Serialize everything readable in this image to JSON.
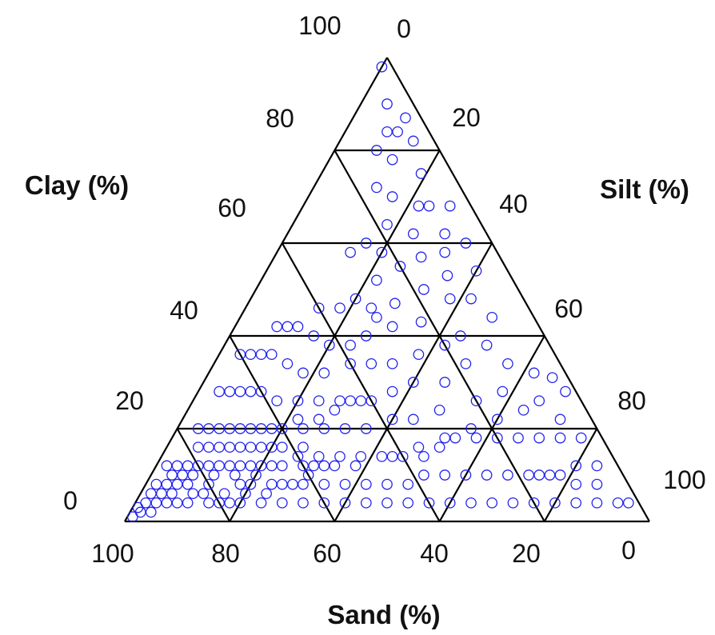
{
  "chart_data": {
    "type": "scatter",
    "subtype": "ternary",
    "title": "",
    "axes": {
      "clay": {
        "label": "Clay (%)",
        "ticks": [
          "100",
          "80",
          "60",
          "40",
          "20",
          "0"
        ],
        "range": [
          0,
          100
        ]
      },
      "silt": {
        "label": "Silt (%)",
        "ticks": [
          "0",
          "20",
          "40",
          "60",
          "80",
          "100"
        ],
        "range": [
          0,
          100
        ]
      },
      "sand": {
        "label": "Sand (%)",
        "ticks": [
          "100",
          "80",
          "60",
          "40",
          "20",
          "0"
        ],
        "range": [
          0,
          100
        ]
      }
    },
    "grid": true,
    "grid_step": 20,
    "marker": "open-circle",
    "marker_color": "#2222ee",
    "line_color": "#000000",
    "series": [
      {
        "columns": [
          "sand",
          "silt",
          "clay"
        ],
        "points": [
          [
            2,
            0,
            98
          ],
          [
            5,
            5,
            90
          ],
          [
            3,
            10,
            87
          ],
          [
            4,
            14,
            82
          ],
          [
            8,
            8,
            84
          ],
          [
            6,
            19,
            75
          ],
          [
            8,
            24,
            68
          ],
          [
            4,
            28,
            68
          ],
          [
            10,
            22,
            68
          ],
          [
            14,
            24,
            62
          ],
          [
            8,
            30,
            62
          ],
          [
            5,
            35,
            60
          ],
          [
            10,
            32,
            58
          ],
          [
            15,
            28,
            57
          ],
          [
            20,
            25,
            55
          ],
          [
            12,
            35,
            53
          ],
          [
            6,
            40,
            54
          ],
          [
            18,
            32,
            50
          ],
          [
            25,
            28,
            47
          ],
          [
            10,
            42,
            48
          ],
          [
            14,
            38,
            48
          ],
          [
            22,
            35,
            43
          ],
          [
            28,
            30,
            42
          ],
          [
            30,
            26,
            44
          ],
          [
            16,
            44,
            40
          ],
          [
            8,
            48,
            44
          ],
          [
            12,
            50,
            38
          ],
          [
            20,
            42,
            38
          ],
          [
            26,
            38,
            36
          ],
          [
            32,
            34,
            34
          ],
          [
            36,
            30,
            34
          ],
          [
            40,
            26,
            34
          ],
          [
            18,
            48,
            34
          ],
          [
            24,
            46,
            30
          ],
          [
            30,
            40,
            30
          ],
          [
            35,
            37,
            28
          ],
          [
            42,
            32,
            26
          ],
          [
            46,
            28,
            26
          ],
          [
            50,
            24,
            26
          ],
          [
            10,
            56,
            34
          ],
          [
            14,
            58,
            28
          ],
          [
            20,
            54,
            26
          ],
          [
            28,
            48,
            24
          ],
          [
            34,
            44,
            22
          ],
          [
            38,
            40,
            22
          ],
          [
            44,
            36,
            20
          ],
          [
            48,
            32,
            20
          ],
          [
            52,
            28,
            20
          ],
          [
            56,
            24,
            20
          ],
          [
            6,
            62,
            32
          ],
          [
            8,
            66,
            26
          ],
          [
            12,
            64,
            24
          ],
          [
            18,
            60,
            22
          ],
          [
            24,
            56,
            20
          ],
          [
            30,
            52,
            18
          ],
          [
            36,
            48,
            16
          ],
          [
            42,
            44,
            14
          ],
          [
            50,
            38,
            12
          ],
          [
            54,
            34,
            12
          ],
          [
            58,
            30,
            12
          ],
          [
            60,
            26,
            14
          ],
          [
            62,
            22,
            16
          ],
          [
            64,
            20,
            16
          ],
          [
            66,
            18,
            16
          ],
          [
            68,
            16,
            16
          ],
          [
            70,
            14,
            16
          ],
          [
            72,
            12,
            16
          ],
          [
            74,
            10,
            16
          ],
          [
            76,
            8,
            16
          ],
          [
            78,
            6,
            16
          ],
          [
            66,
            22,
            12
          ],
          [
            70,
            20,
            10
          ],
          [
            74,
            16,
            10
          ],
          [
            78,
            12,
            10
          ],
          [
            82,
            8,
            10
          ],
          [
            84,
            6,
            10
          ],
          [
            86,
            4,
            10
          ],
          [
            88,
            4,
            8
          ],
          [
            90,
            2,
            8
          ],
          [
            92,
            2,
            6
          ],
          [
            94,
            2,
            4
          ],
          [
            96,
            1,
            3
          ],
          [
            98,
            1,
            1
          ],
          [
            90,
            6,
            4
          ],
          [
            86,
            10,
            4
          ],
          [
            82,
            14,
            4
          ],
          [
            80,
            16,
            4
          ],
          [
            76,
            20,
            4
          ],
          [
            72,
            24,
            4
          ],
          [
            68,
            28,
            4
          ],
          [
            64,
            32,
            4
          ],
          [
            60,
            36,
            4
          ],
          [
            56,
            40,
            4
          ],
          [
            52,
            44,
            4
          ],
          [
            48,
            48,
            4
          ],
          [
            44,
            52,
            4
          ],
          [
            40,
            56,
            4
          ],
          [
            36,
            60,
            4
          ],
          [
            32,
            64,
            4
          ],
          [
            28,
            68,
            4
          ],
          [
            24,
            72,
            4
          ],
          [
            20,
            76,
            4
          ],
          [
            16,
            80,
            4
          ],
          [
            12,
            84,
            4
          ],
          [
            8,
            88,
            4
          ],
          [
            4,
            92,
            4
          ],
          [
            2,
            94,
            4
          ],
          [
            6,
            86,
            8
          ],
          [
            10,
            82,
            8
          ],
          [
            14,
            76,
            10
          ],
          [
            18,
            72,
            10
          ],
          [
            22,
            68,
            10
          ],
          [
            26,
            64,
            10
          ],
          [
            30,
            60,
            10
          ],
          [
            34,
            56,
            10
          ],
          [
            38,
            52,
            10
          ],
          [
            42,
            50,
            8
          ],
          [
            46,
            46,
            8
          ],
          [
            50,
            42,
            8
          ],
          [
            54,
            38,
            8
          ],
          [
            58,
            34,
            8
          ],
          [
            62,
            30,
            8
          ],
          [
            66,
            26,
            8
          ],
          [
            70,
            24,
            6
          ],
          [
            74,
            20,
            6
          ],
          [
            78,
            18,
            4
          ],
          [
            84,
            10,
            6
          ],
          [
            88,
            8,
            4
          ],
          [
            4,
            78,
            18
          ],
          [
            8,
            74,
            18
          ],
          [
            12,
            70,
            18
          ],
          [
            16,
            66,
            18
          ],
          [
            20,
            62,
            18
          ],
          [
            24,
            58,
            18
          ],
          [
            28,
            54,
            18
          ],
          [
            32,
            52,
            16
          ],
          [
            36,
            50,
            14
          ],
          [
            40,
            46,
            14
          ],
          [
            44,
            42,
            14
          ],
          [
            48,
            38,
            14
          ],
          [
            52,
            34,
            14
          ],
          [
            56,
            32,
            12
          ],
          [
            2,
            70,
            28
          ],
          [
            6,
            72,
            22
          ],
          [
            4,
            84,
            12
          ],
          [
            8,
            80,
            12
          ],
          [
            12,
            78,
            10
          ],
          [
            16,
            74,
            10
          ],
          [
            3,
            66,
            31
          ],
          [
            40,
            34,
            26
          ],
          [
            44,
            30,
            26
          ],
          [
            48,
            28,
            24
          ],
          [
            52,
            26,
            22
          ],
          [
            56,
            22,
            22
          ],
          [
            60,
            20,
            20
          ],
          [
            62,
            18,
            20
          ],
          [
            64,
            16,
            20
          ],
          [
            66,
            14,
            20
          ],
          [
            68,
            12,
            20
          ],
          [
            70,
            10,
            20
          ],
          [
            72,
            8,
            20
          ],
          [
            74,
            6,
            20
          ],
          [
            76,
            4,
            20
          ],
          [
            58,
            16,
            26
          ],
          [
            60,
            12,
            28
          ],
          [
            62,
            10,
            28
          ],
          [
            64,
            8,
            28
          ],
          [
            66,
            6,
            28
          ],
          [
            68,
            4,
            28
          ],
          [
            54,
            20,
            26
          ],
          [
            50,
            18,
            32
          ],
          [
            52,
            14,
            34
          ],
          [
            54,
            10,
            36
          ],
          [
            56,
            8,
            36
          ],
          [
            58,
            6,
            36
          ],
          [
            60,
            4,
            36
          ],
          [
            46,
            22,
            32
          ],
          [
            42,
            20,
            38
          ],
          [
            44,
            16,
            40
          ],
          [
            46,
            12,
            42
          ],
          [
            48,
            10,
            42
          ],
          [
            50,
            8,
            42
          ],
          [
            38,
            24,
            38
          ],
          [
            34,
            26,
            40
          ],
          [
            30,
            24,
            46
          ],
          [
            32,
            20,
            48
          ],
          [
            36,
            18,
            46
          ],
          [
            40,
            14,
            46
          ],
          [
            26,
            22,
            52
          ],
          [
            22,
            20,
            58
          ],
          [
            24,
            16,
            60
          ],
          [
            28,
            14,
            58
          ],
          [
            18,
            18,
            64
          ],
          [
            14,
            16,
            70
          ],
          [
            16,
            12,
            72
          ],
          [
            10,
            12,
            78
          ],
          [
            12,
            8,
            80
          ],
          [
            6,
            10,
            84
          ],
          [
            74,
            14,
            12
          ],
          [
            78,
            10,
            12
          ],
          [
            80,
            8,
            12
          ],
          [
            82,
            6,
            12
          ],
          [
            84,
            4,
            12
          ],
          [
            86,
            2,
            12
          ],
          [
            76,
            12,
            12
          ],
          [
            80,
            12,
            8
          ],
          [
            84,
            8,
            8
          ],
          [
            86,
            6,
            8
          ],
          [
            88,
            6,
            6
          ],
          [
            90,
            4,
            6
          ],
          [
            92,
            4,
            4
          ],
          [
            94,
            4,
            2
          ],
          [
            96,
            2,
            2
          ],
          [
            70,
            18,
            12
          ],
          [
            72,
            16,
            12
          ],
          [
            68,
            20,
            12
          ],
          [
            64,
            24,
            12
          ],
          [
            60,
            28,
            12
          ],
          [
            56,
            30,
            14
          ],
          [
            58,
            26,
            16
          ],
          [
            82,
            12,
            6
          ],
          [
            78,
            16,
            6
          ],
          [
            74,
            18,
            8
          ],
          [
            72,
            20,
            8
          ],
          [
            68,
            24,
            8
          ],
          [
            64,
            28,
            8
          ],
          [
            60,
            30,
            10
          ]
        ]
      }
    ]
  }
}
